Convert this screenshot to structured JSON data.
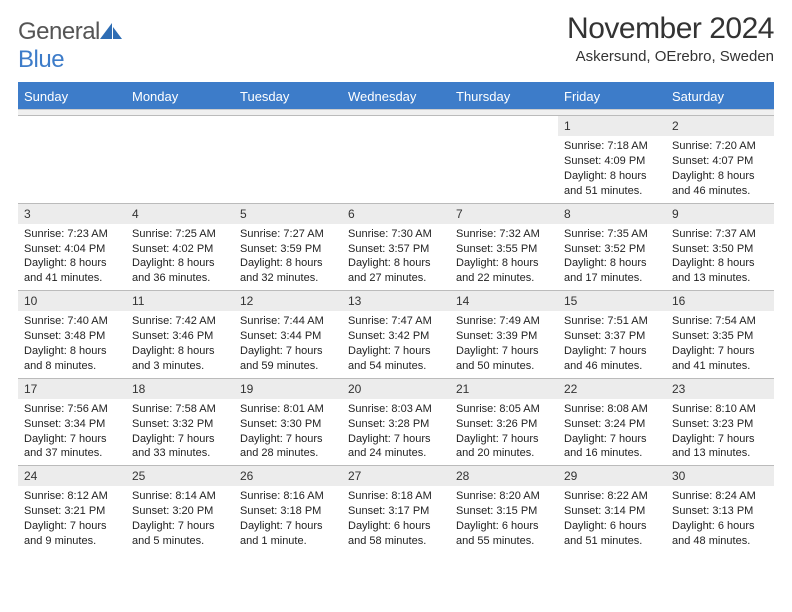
{
  "logo": {
    "text1": "General",
    "text2": "Blue"
  },
  "title": "November 2024",
  "location": "Askersund, OErebro, Sweden",
  "colors": {
    "header_blue": "#3d7cc9",
    "daynum_bg": "#ececec",
    "border": "#bbbbbb",
    "text": "#333333"
  },
  "typography": {
    "title_fontsize": 30,
    "body_fontsize": 11
  },
  "day_names": [
    "Sunday",
    "Monday",
    "Tuesday",
    "Wednesday",
    "Thursday",
    "Friday",
    "Saturday"
  ],
  "weeks": [
    [
      null,
      null,
      null,
      null,
      null,
      {
        "n": "1",
        "sunrise": "Sunrise: 7:18 AM",
        "sunset": "Sunset: 4:09 PM",
        "daylight": "Daylight: 8 hours and 51 minutes."
      },
      {
        "n": "2",
        "sunrise": "Sunrise: 7:20 AM",
        "sunset": "Sunset: 4:07 PM",
        "daylight": "Daylight: 8 hours and 46 minutes."
      }
    ],
    [
      {
        "n": "3",
        "sunrise": "Sunrise: 7:23 AM",
        "sunset": "Sunset: 4:04 PM",
        "daylight": "Daylight: 8 hours and 41 minutes."
      },
      {
        "n": "4",
        "sunrise": "Sunrise: 7:25 AM",
        "sunset": "Sunset: 4:02 PM",
        "daylight": "Daylight: 8 hours and 36 minutes."
      },
      {
        "n": "5",
        "sunrise": "Sunrise: 7:27 AM",
        "sunset": "Sunset: 3:59 PM",
        "daylight": "Daylight: 8 hours and 32 minutes."
      },
      {
        "n": "6",
        "sunrise": "Sunrise: 7:30 AM",
        "sunset": "Sunset: 3:57 PM",
        "daylight": "Daylight: 8 hours and 27 minutes."
      },
      {
        "n": "7",
        "sunrise": "Sunrise: 7:32 AM",
        "sunset": "Sunset: 3:55 PM",
        "daylight": "Daylight: 8 hours and 22 minutes."
      },
      {
        "n": "8",
        "sunrise": "Sunrise: 7:35 AM",
        "sunset": "Sunset: 3:52 PM",
        "daylight": "Daylight: 8 hours and 17 minutes."
      },
      {
        "n": "9",
        "sunrise": "Sunrise: 7:37 AM",
        "sunset": "Sunset: 3:50 PM",
        "daylight": "Daylight: 8 hours and 13 minutes."
      }
    ],
    [
      {
        "n": "10",
        "sunrise": "Sunrise: 7:40 AM",
        "sunset": "Sunset: 3:48 PM",
        "daylight": "Daylight: 8 hours and 8 minutes."
      },
      {
        "n": "11",
        "sunrise": "Sunrise: 7:42 AM",
        "sunset": "Sunset: 3:46 PM",
        "daylight": "Daylight: 8 hours and 3 minutes."
      },
      {
        "n": "12",
        "sunrise": "Sunrise: 7:44 AM",
        "sunset": "Sunset: 3:44 PM",
        "daylight": "Daylight: 7 hours and 59 minutes."
      },
      {
        "n": "13",
        "sunrise": "Sunrise: 7:47 AM",
        "sunset": "Sunset: 3:42 PM",
        "daylight": "Daylight: 7 hours and 54 minutes."
      },
      {
        "n": "14",
        "sunrise": "Sunrise: 7:49 AM",
        "sunset": "Sunset: 3:39 PM",
        "daylight": "Daylight: 7 hours and 50 minutes."
      },
      {
        "n": "15",
        "sunrise": "Sunrise: 7:51 AM",
        "sunset": "Sunset: 3:37 PM",
        "daylight": "Daylight: 7 hours and 46 minutes."
      },
      {
        "n": "16",
        "sunrise": "Sunrise: 7:54 AM",
        "sunset": "Sunset: 3:35 PM",
        "daylight": "Daylight: 7 hours and 41 minutes."
      }
    ],
    [
      {
        "n": "17",
        "sunrise": "Sunrise: 7:56 AM",
        "sunset": "Sunset: 3:34 PM",
        "daylight": "Daylight: 7 hours and 37 minutes."
      },
      {
        "n": "18",
        "sunrise": "Sunrise: 7:58 AM",
        "sunset": "Sunset: 3:32 PM",
        "daylight": "Daylight: 7 hours and 33 minutes."
      },
      {
        "n": "19",
        "sunrise": "Sunrise: 8:01 AM",
        "sunset": "Sunset: 3:30 PM",
        "daylight": "Daylight: 7 hours and 28 minutes."
      },
      {
        "n": "20",
        "sunrise": "Sunrise: 8:03 AM",
        "sunset": "Sunset: 3:28 PM",
        "daylight": "Daylight: 7 hours and 24 minutes."
      },
      {
        "n": "21",
        "sunrise": "Sunrise: 8:05 AM",
        "sunset": "Sunset: 3:26 PM",
        "daylight": "Daylight: 7 hours and 20 minutes."
      },
      {
        "n": "22",
        "sunrise": "Sunrise: 8:08 AM",
        "sunset": "Sunset: 3:24 PM",
        "daylight": "Daylight: 7 hours and 16 minutes."
      },
      {
        "n": "23",
        "sunrise": "Sunrise: 8:10 AM",
        "sunset": "Sunset: 3:23 PM",
        "daylight": "Daylight: 7 hours and 13 minutes."
      }
    ],
    [
      {
        "n": "24",
        "sunrise": "Sunrise: 8:12 AM",
        "sunset": "Sunset: 3:21 PM",
        "daylight": "Daylight: 7 hours and 9 minutes."
      },
      {
        "n": "25",
        "sunrise": "Sunrise: 8:14 AM",
        "sunset": "Sunset: 3:20 PM",
        "daylight": "Daylight: 7 hours and 5 minutes."
      },
      {
        "n": "26",
        "sunrise": "Sunrise: 8:16 AM",
        "sunset": "Sunset: 3:18 PM",
        "daylight": "Daylight: 7 hours and 1 minute."
      },
      {
        "n": "27",
        "sunrise": "Sunrise: 8:18 AM",
        "sunset": "Sunset: 3:17 PM",
        "daylight": "Daylight: 6 hours and 58 minutes."
      },
      {
        "n": "28",
        "sunrise": "Sunrise: 8:20 AM",
        "sunset": "Sunset: 3:15 PM",
        "daylight": "Daylight: 6 hours and 55 minutes."
      },
      {
        "n": "29",
        "sunrise": "Sunrise: 8:22 AM",
        "sunset": "Sunset: 3:14 PM",
        "daylight": "Daylight: 6 hours and 51 minutes."
      },
      {
        "n": "30",
        "sunrise": "Sunrise: 8:24 AM",
        "sunset": "Sunset: 3:13 PM",
        "daylight": "Daylight: 6 hours and 48 minutes."
      }
    ]
  ]
}
